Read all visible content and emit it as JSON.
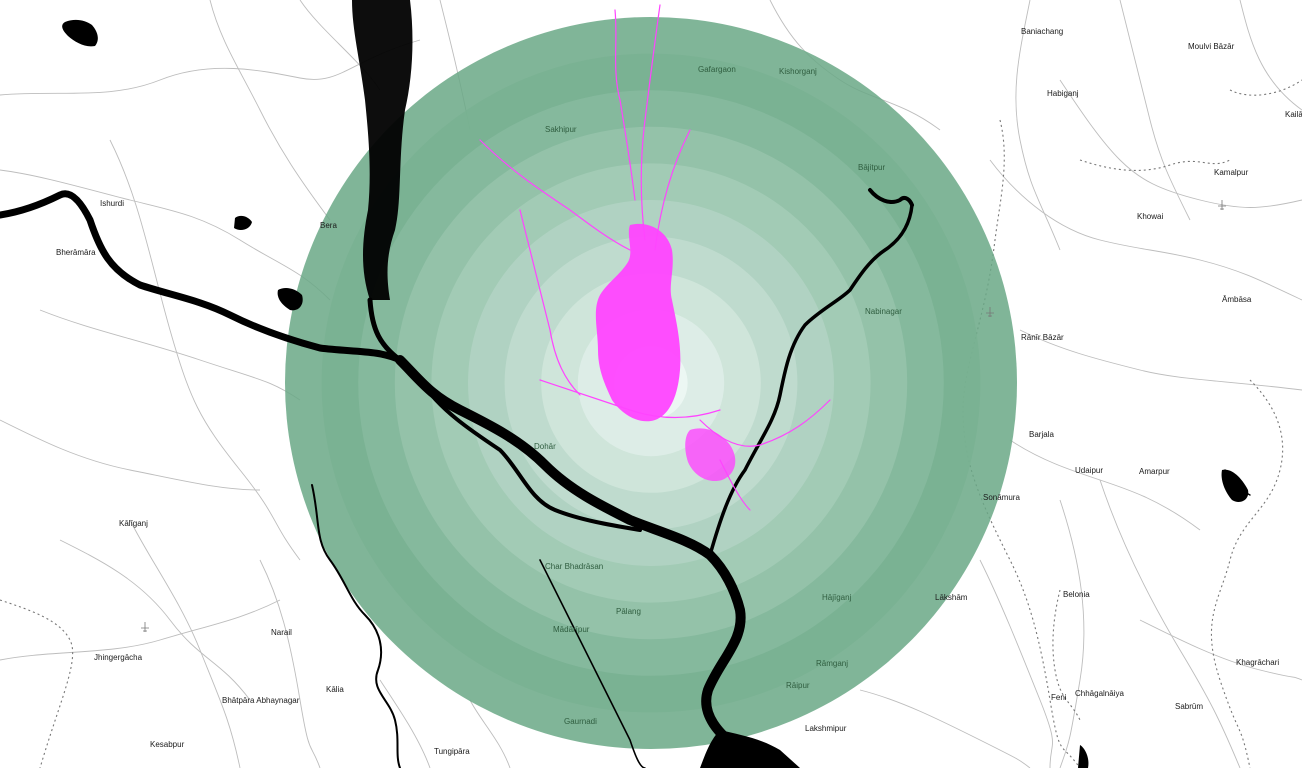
{
  "map": {
    "colors": {
      "ring_outer": "#6aa886",
      "ring_inner": "#eef8f5",
      "urban": "#ff44ff",
      "water": "#000000",
      "roads": "#bdbdbd"
    },
    "rings_count": 10,
    "labels": {
      "ishurdi": "Ishurdi",
      "bheramara": "Bherāmāra",
      "bera": "Bera",
      "kaliganj": "Kālīganj",
      "jhingergacha": "Jhingergācha",
      "narail": "Narail",
      "kalia": "Kālia",
      "bhatpara": "Bhātpāra Abhaynagar",
      "kesabpur": "Kesabpur",
      "tungipara": "Tungipāra",
      "gafargaon": "Gafargaon",
      "kishorganj": "Kishorganj",
      "sakhipur": "Sakhipur",
      "bajitpur": "Bājitpur",
      "nabinagar": "Nabinagar",
      "dohar": "Dohār",
      "char_bhadrasan": "Char Bhadrāsan",
      "palang": "Pālang",
      "madaripur": "Mādārīpur",
      "hajiganj": "Hājīganj",
      "ramganj": "Rāmganj",
      "raipur": "Rāipur",
      "gaurnadi": "Gaurnadi",
      "lakshmipur": "Lakshmipur",
      "laksham": "Lākshām",
      "sonamura": "Sonāmura",
      "baniachang": "Baniachang",
      "moulvi_bazar": "Moulvi Bāzār",
      "habiganj": "Habiganj",
      "kamalpur": "Kamalpur",
      "khowai": "Khowai",
      "ambasa": "Āmbāsa",
      "ranir_bazar": "Rānīr Bāzār",
      "barjala": "Barjala",
      "udaipur": "Udaipur",
      "amarpur": "Amarpur",
      "belonia": "Belonia",
      "feni": "Feni",
      "chhagalnaiya": "Chhāgalnāiya",
      "sabrum": "Sabrūm",
      "khagrachari": "Khagrāchari",
      "kaila": "Kailā"
    }
  }
}
